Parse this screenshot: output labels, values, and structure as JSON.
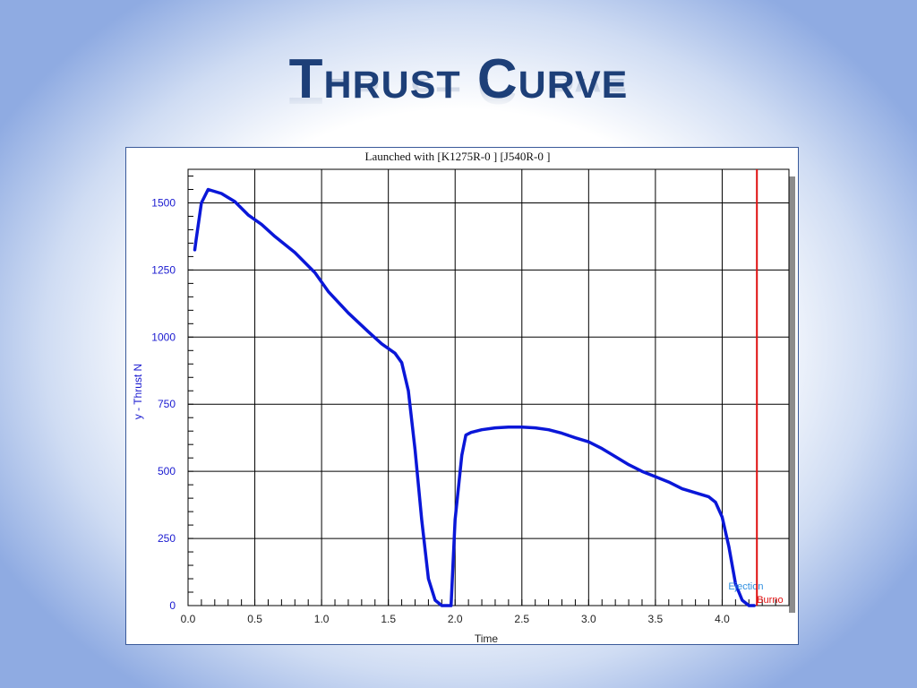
{
  "slide": {
    "title": "Thrust Curve"
  },
  "chart_data": {
    "type": "line",
    "title": "Launched with [K1275R-0   ] [J540R-0   ]",
    "xlabel": "Time",
    "ylabel": "y - Thrust N",
    "xlim": [
      0,
      4.5
    ],
    "ylim": [
      0,
      1625
    ],
    "xticks": [
      "0.0",
      "0.5",
      "1.0",
      "1.5",
      "2.0",
      "2.5",
      "3.0",
      "3.5",
      "4.0"
    ],
    "yticks": [
      "0",
      "250",
      "500",
      "750",
      "1000",
      "1250",
      "1500"
    ],
    "grid": true,
    "series": [
      {
        "name": "",
        "color": "#0a17d8",
        "x": [
          0.05,
          0.06,
          0.1,
          0.15,
          0.25,
          0.35,
          0.45,
          0.55,
          0.65,
          0.8,
          0.95,
          1.05,
          1.2,
          1.35,
          1.45,
          1.55,
          1.6,
          1.65,
          1.7,
          1.75,
          1.8,
          1.85,
          1.9,
          1.95,
          1.97,
          2.0,
          2.05,
          2.08,
          2.12,
          2.2,
          2.3,
          2.4,
          2.5,
          2.6,
          2.7,
          2.8,
          2.9,
          3.0,
          3.1,
          3.2,
          3.3,
          3.4,
          3.5,
          3.6,
          3.7,
          3.8,
          3.9,
          3.95,
          4.0,
          4.05,
          4.1,
          4.15,
          4.2,
          4.24
        ],
        "y": [
          1325,
          1360,
          1500,
          1550,
          1535,
          1505,
          1455,
          1420,
          1375,
          1315,
          1240,
          1170,
          1090,
          1020,
          975,
          940,
          905,
          800,
          580,
          320,
          100,
          20,
          0,
          0,
          0,
          320,
          560,
          635,
          645,
          655,
          662,
          665,
          665,
          662,
          655,
          642,
          625,
          610,
          585,
          555,
          525,
          500,
          480,
          460,
          435,
          420,
          405,
          385,
          330,
          220,
          80,
          20,
          0,
          0
        ]
      }
    ],
    "markers": [
      {
        "label": "Ejection",
        "x": 4.1,
        "color": "#2f8fe0"
      },
      {
        "label": "Burno",
        "x": 4.26,
        "color": "#e01010"
      }
    ]
  }
}
